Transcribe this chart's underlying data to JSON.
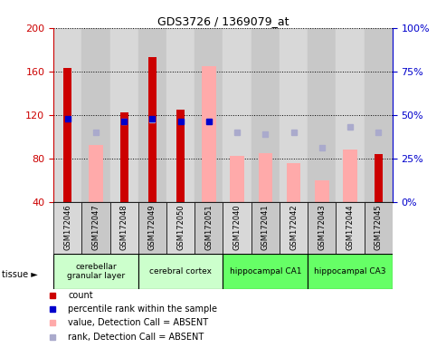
{
  "title": "GDS3726 / 1369079_at",
  "samples": [
    "GSM172046",
    "GSM172047",
    "GSM172048",
    "GSM172049",
    "GSM172050",
    "GSM172051",
    "GSM172040",
    "GSM172041",
    "GSM172042",
    "GSM172043",
    "GSM172044",
    "GSM172045"
  ],
  "count": [
    163,
    null,
    122,
    173,
    125,
    null,
    null,
    null,
    null,
    null,
    null,
    84
  ],
  "percentile_rank": [
    48,
    null,
    46,
    48,
    46,
    46,
    null,
    null,
    null,
    null,
    null,
    null
  ],
  "value_absent": [
    null,
    92,
    null,
    null,
    null,
    165,
    82,
    85,
    76,
    60,
    88,
    null
  ],
  "rank_absent": [
    null,
    40,
    46,
    47,
    null,
    46,
    40,
    39,
    40,
    31,
    43,
    40
  ],
  "ylim_left": [
    40,
    200
  ],
  "ylim_right": [
    0,
    100
  ],
  "left_ticks": [
    40,
    80,
    120,
    160,
    200
  ],
  "right_ticks": [
    0,
    25,
    50,
    75,
    100
  ],
  "tissue_groups": [
    {
      "label": "cerebellar\ngranular layer",
      "start": 0,
      "end": 3,
      "color": "#ccffcc"
    },
    {
      "label": "cerebral cortex",
      "start": 3,
      "end": 6,
      "color": "#ccffcc"
    },
    {
      "label": "hippocampal CA1",
      "start": 6,
      "end": 9,
      "color": "#66ff66"
    },
    {
      "label": "hippocampal CA3",
      "start": 9,
      "end": 12,
      "color": "#66ff66"
    }
  ],
  "count_color": "#cc0000",
  "percentile_color": "#0000cc",
  "value_absent_color": "#ffaaaa",
  "rank_absent_color": "#aaaacc",
  "bg_color": "#ffffff",
  "left_axis_color": "#cc0000",
  "right_axis_color": "#0000cc",
  "tissue_colors": [
    "#ccffcc",
    "#ccffcc",
    "#66ff66",
    "#66ff66"
  ]
}
